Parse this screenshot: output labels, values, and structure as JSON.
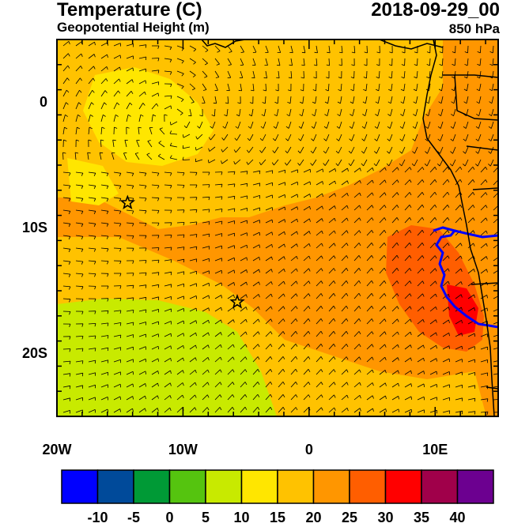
{
  "header": {
    "title": "Temperature (C)",
    "subtitle": "Geopotential Height (m)",
    "datetime": "2018-09-29_00",
    "level": "850 hPa"
  },
  "axes": {
    "lat_ticks": [
      {
        "value": 0,
        "label": "0"
      },
      {
        "value": -10,
        "label": "10S"
      },
      {
        "value": -20,
        "label": "20S"
      }
    ],
    "lon_ticks": [
      {
        "value": -20,
        "label": "20W"
      },
      {
        "value": -10,
        "label": "10W"
      },
      {
        "value": 0,
        "label": "0"
      },
      {
        "value": 10,
        "label": "10E"
      }
    ],
    "lon_range": [
      -20,
      15
    ],
    "lat_range": [
      -25,
      5
    ]
  },
  "markers": [
    {
      "name": "star-marker",
      "lon": -14.4,
      "lat": -8.0
    },
    {
      "name": "star-marker",
      "lon": -5.7,
      "lat": -15.9
    }
  ],
  "colorbar": {
    "colors": [
      "#0000ff",
      "#004a9a",
      "#009a36",
      "#55c40f",
      "#c8ea00",
      "#ffe600",
      "#ffc200",
      "#ff9600",
      "#ff5e00",
      "#ff0000",
      "#a0004a",
      "#6c0090"
    ],
    "labels": [
      "-10",
      "-5",
      "0",
      "5",
      "10",
      "15",
      "20",
      "25",
      "30",
      "35",
      "40"
    ]
  },
  "field_colors": {
    "t_10_15": "#ffe600",
    "t_15_20": "#ffc200",
    "t_20_25": "#ff9600",
    "t_25_30": "#ff5e00",
    "t_5_10": "#c8ea00",
    "t_30_35": "#ff0000",
    "coast": "#000000",
    "contour": "#0000ff",
    "wind_barb": "#000000"
  }
}
